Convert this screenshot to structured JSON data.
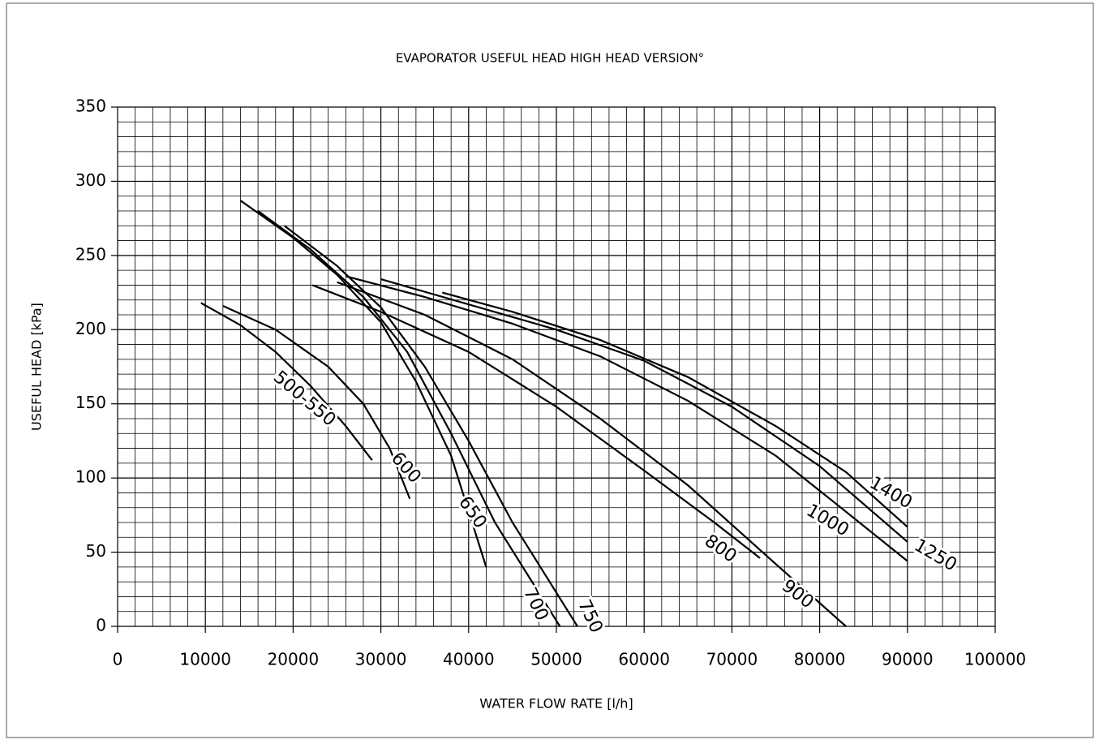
{
  "chart_data": {
    "type": "line",
    "title": "EVAPORATOR USEFUL HEAD  HIGH HEAD VERSION°",
    "x_label": "WATER FLOW RATE [l/h]",
    "y_label": "USEFUL HEAD [kPa]",
    "xlim": [
      0,
      100000
    ],
    "xticks": [
      0,
      10000,
      20000,
      30000,
      40000,
      50000,
      60000,
      70000,
      80000,
      90000,
      100000
    ],
    "ylim": [
      0,
      350
    ],
    "yticks": [
      0,
      50,
      100,
      150,
      200,
      250,
      300,
      350
    ],
    "grid": true,
    "minor_grid": 5,
    "series": [
      {
        "name": "500-550",
        "color": "#000000",
        "x": [
          9500,
          14000,
          18000,
          22000,
          26000,
          29000
        ],
        "values": [
          218,
          203,
          185,
          162,
          135,
          112
        ]
      },
      {
        "name": "600",
        "color": "#000000",
        "x": [
          12000,
          18000,
          24000,
          28000,
          31000,
          33300
        ],
        "values": [
          216,
          200,
          175,
          150,
          120,
          86
        ]
      },
      {
        "name": "650",
        "color": "#000000",
        "x": [
          14000,
          20000,
          25000,
          30000,
          34000,
          38000,
          42000
        ],
        "values": [
          287,
          262,
          237,
          205,
          165,
          115,
          40
        ]
      },
      {
        "name": "700",
        "color": "#000000",
        "x": [
          16000,
          22000,
          28000,
          33000,
          38000,
          43000,
          50400
        ],
        "values": [
          280,
          254,
          222,
          185,
          130,
          70,
          0
        ]
      },
      {
        "name": "750",
        "color": "#000000",
        "x": [
          19000,
          25000,
          30000,
          35000,
          40000,
          45000,
          52400
        ],
        "values": [
          270,
          243,
          215,
          175,
          125,
          70,
          0
        ]
      },
      {
        "name": "800",
        "color": "#000000",
        "x": [
          22200,
          30000,
          40000,
          50000,
          60000,
          68000,
          73200
        ],
        "values": [
          230,
          212,
          185,
          148,
          105,
          70,
          46
        ]
      },
      {
        "name": "900",
        "color": "#000000",
        "x": [
          25000,
          35000,
          45000,
          55000,
          65000,
          75000,
          83000
        ],
        "values": [
          232,
          210,
          180,
          140,
          95,
          42,
          0
        ]
      },
      {
        "name": "1000",
        "color": "#000000",
        "x": [
          26000,
          35000,
          45000,
          55000,
          65000,
          75000,
          82000,
          90000
        ],
        "values": [
          236,
          222,
          204,
          182,
          152,
          115,
          82,
          44
        ]
      },
      {
        "name": "1250",
        "color": "#000000",
        "x": [
          30000,
          40000,
          50000,
          60000,
          70000,
          80000,
          90000
        ],
        "values": [
          234,
          217,
          200,
          179,
          148,
          108,
          57
        ]
      },
      {
        "name": "1400",
        "color": "#000000",
        "x": [
          37000,
          45000,
          55000,
          65000,
          75000,
          83000,
          90000
        ],
        "values": [
          225,
          212,
          193,
          168,
          135,
          104,
          67
        ]
      }
    ]
  }
}
